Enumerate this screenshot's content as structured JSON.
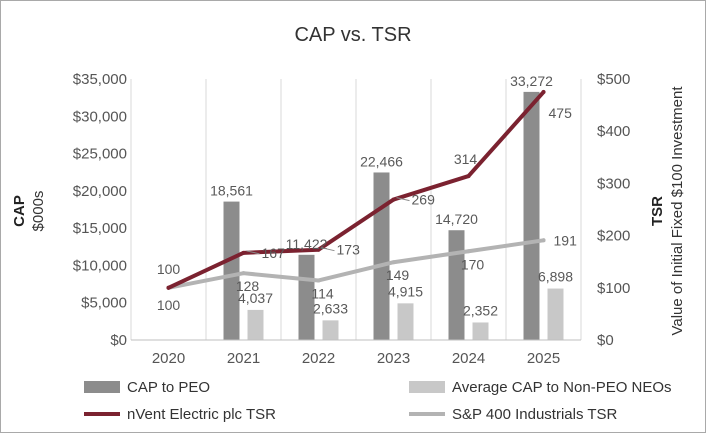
{
  "chart_data": {
    "type": "bar",
    "title": "CAP vs. TSR",
    "categories": [
      "2020",
      "2021",
      "2022",
      "2023",
      "2024",
      "2025"
    ],
    "y_left": {
      "label": "CAP",
      "sublabel": "$000s",
      "range": [
        0,
        35000
      ],
      "ticks": [
        0,
        5000,
        10000,
        15000,
        20000,
        25000,
        30000,
        35000
      ],
      "tick_labels": [
        "$0",
        "$5,000",
        "$10,000",
        "$15,000",
        "$20,000",
        "$25,000",
        "$30,000",
        "$35,000"
      ]
    },
    "y_right": {
      "label": "TSR",
      "sublabel": "Value of Initial Fixed $100 Investment",
      "range": [
        0,
        500
      ],
      "ticks": [
        0,
        100,
        200,
        300,
        400,
        500
      ],
      "tick_labels": [
        "$0",
        "$100",
        "$200",
        "$300",
        "$400",
        "$500"
      ]
    },
    "bar_series": [
      {
        "name": "CAP to PEO",
        "color": "#8c8c8c",
        "values": [
          null,
          18561,
          11422,
          22466,
          14720,
          33272
        ],
        "labels": [
          "",
          "18,561",
          "11,422",
          "22,466",
          "14,720",
          "33,272"
        ]
      },
      {
        "name": "Average CAP to Non-PEO NEOs",
        "color": "#c8c8c8",
        "values": [
          null,
          4037,
          2633,
          4915,
          2352,
          6898
        ],
        "labels": [
          "",
          "4,037",
          "2,633",
          "4,915",
          "2,352",
          "6,898"
        ]
      }
    ],
    "line_series": [
      {
        "name": "nVent Electric plc TSR",
        "color": "#7b2230",
        "values": [
          100,
          167,
          173,
          269,
          314,
          475
        ],
        "labels": [
          "100",
          "167",
          "173",
          "269",
          "314",
          "475"
        ]
      },
      {
        "name": "S&P 400 Industrials TSR",
        "color": "#b3b3b3",
        "values": [
          100,
          128,
          114,
          149,
          170,
          191
        ],
        "labels": [
          "100",
          "128",
          "114",
          "149",
          "170",
          "191"
        ]
      }
    ],
    "legend_position": "bottom",
    "grid": {
      "vertical": true,
      "horizontal": false
    }
  }
}
